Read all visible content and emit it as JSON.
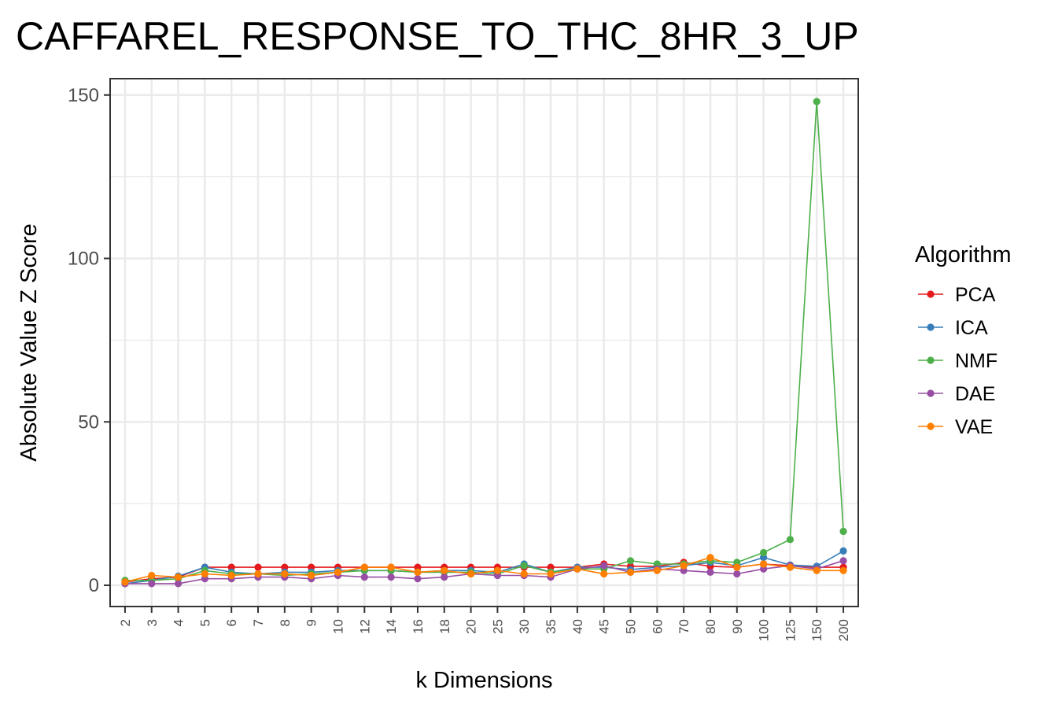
{
  "chart_data": {
    "type": "line",
    "title": "CAFFAREL_RESPONSE_TO_THC_8HR_3_UP",
    "xlabel": "k Dimensions",
    "ylabel": "Absolute Value Z Score",
    "categories": [
      "2",
      "3",
      "4",
      "5",
      "6",
      "7",
      "8",
      "9",
      "10",
      "12",
      "14",
      "16",
      "18",
      "20",
      "25",
      "30",
      "35",
      "40",
      "45",
      "50",
      "60",
      "70",
      "80",
      "90",
      "100",
      "125",
      "150",
      "200"
    ],
    "ylim": [
      -6.5,
      155
    ],
    "yticks": [
      0,
      50,
      100,
      150
    ],
    "grid": true,
    "legend": {
      "title": "Algorithm",
      "position": "right"
    },
    "series": [
      {
        "name": "PCA",
        "color": "#e41a1c",
        "values": [
          1.0,
          2.0,
          2.5,
          5.5,
          5.5,
          5.5,
          5.5,
          5.5,
          5.5,
          5.5,
          5.5,
          5.5,
          5.5,
          5.5,
          5.5,
          5.5,
          5.5,
          5.5,
          6.5,
          5.8,
          5.8,
          7.0,
          5.8,
          5.5,
          6.5,
          6.0,
          5.5,
          5.5
        ]
      },
      {
        "name": "ICA",
        "color": "#377eb8",
        "values": [
          0.5,
          1.5,
          2.8,
          5.5,
          4.0,
          3.5,
          4.0,
          4.0,
          4.5,
          4.5,
          4.5,
          4.0,
          4.5,
          4.5,
          4.0,
          6.5,
          4.0,
          5.5,
          5.5,
          4.8,
          5.5,
          6.0,
          7.0,
          6.0,
          8.5,
          6.2,
          5.8,
          10.5
        ]
      },
      {
        "name": "NMF",
        "color": "#4daf4a",
        "values": [
          1.5,
          1.5,
          2.0,
          4.5,
          3.5,
          3.5,
          3.0,
          3.5,
          4.0,
          4.5,
          4.5,
          4.0,
          4.0,
          4.0,
          3.5,
          6.0,
          4.0,
          5.0,
          5.0,
          7.5,
          6.5,
          6.5,
          7.5,
          7.0,
          10.0,
          14.0,
          148.0,
          16.5
        ]
      },
      {
        "name": "DAE",
        "color": "#984ea3",
        "values": [
          0.5,
          0.5,
          0.5,
          2.0,
          2.0,
          2.5,
          2.5,
          2.0,
          3.0,
          2.5,
          2.5,
          2.0,
          2.5,
          3.5,
          3.0,
          3.0,
          2.5,
          5.0,
          6.0,
          4.0,
          5.0,
          4.5,
          4.0,
          3.5,
          5.0,
          6.0,
          5.0,
          7.5
        ]
      },
      {
        "name": "VAE",
        "color": "#ff7f00",
        "values": [
          1.0,
          3.0,
          2.5,
          3.5,
          3.0,
          3.5,
          3.5,
          3.0,
          4.0,
          5.5,
          5.5,
          4.0,
          4.5,
          3.5,
          4.5,
          3.5,
          3.5,
          5.0,
          3.5,
          4.0,
          4.5,
          6.0,
          8.5,
          5.5,
          6.5,
          5.5,
          4.5,
          4.5
        ]
      }
    ]
  }
}
